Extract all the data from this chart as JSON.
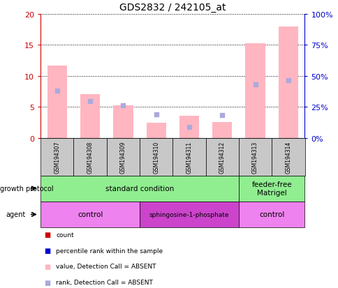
{
  "title": "GDS2832 / 242105_at",
  "samples": [
    "GSM194307",
    "GSM194308",
    "GSM194309",
    "GSM194310",
    "GSM194311",
    "GSM194312",
    "GSM194313",
    "GSM194314"
  ],
  "pink_bar_values": [
    11.7,
    7.0,
    5.3,
    2.4,
    3.6,
    2.6,
    15.3,
    18.0
  ],
  "blue_dot_values": [
    7.6,
    5.9,
    5.3,
    3.8,
    1.8,
    3.7,
    8.6,
    9.3
  ],
  "ylim_left": [
    0,
    20
  ],
  "ylim_right": [
    0,
    100
  ],
  "yticks_left": [
    0,
    5,
    10,
    15,
    20
  ],
  "yticks_right": [
    0,
    25,
    50,
    75,
    100
  ],
  "ytick_labels_left": [
    "0",
    "5",
    "10",
    "15",
    "20"
  ],
  "ytick_labels_right": [
    "0%",
    "25%",
    "50%",
    "75%",
    "100%"
  ],
  "growth_protocol_groups": [
    {
      "label": "standard condition",
      "start": 0,
      "end": 6
    },
    {
      "label": "feeder-free\nMatrigel",
      "start": 6,
      "end": 8
    }
  ],
  "agent_groups": [
    {
      "label": "control",
      "start": 0,
      "end": 3
    },
    {
      "label": "sphingosine-1-phosphate",
      "start": 3,
      "end": 6
    },
    {
      "label": "control",
      "start": 6,
      "end": 8
    }
  ],
  "growth_protocol_color": "#90ee90",
  "agent_colors": [
    "#ee82ee",
    "#cc44cc",
    "#ee82ee"
  ],
  "absent_bar_color": "#ffb6c1",
  "absent_rank_color": "#aaaadd",
  "count_color": "#cc0000",
  "rank_color": "#0000cc",
  "label_area_color": "#c8c8c8",
  "left_axis_color": "#cc0000",
  "right_axis_color": "#0000cc"
}
